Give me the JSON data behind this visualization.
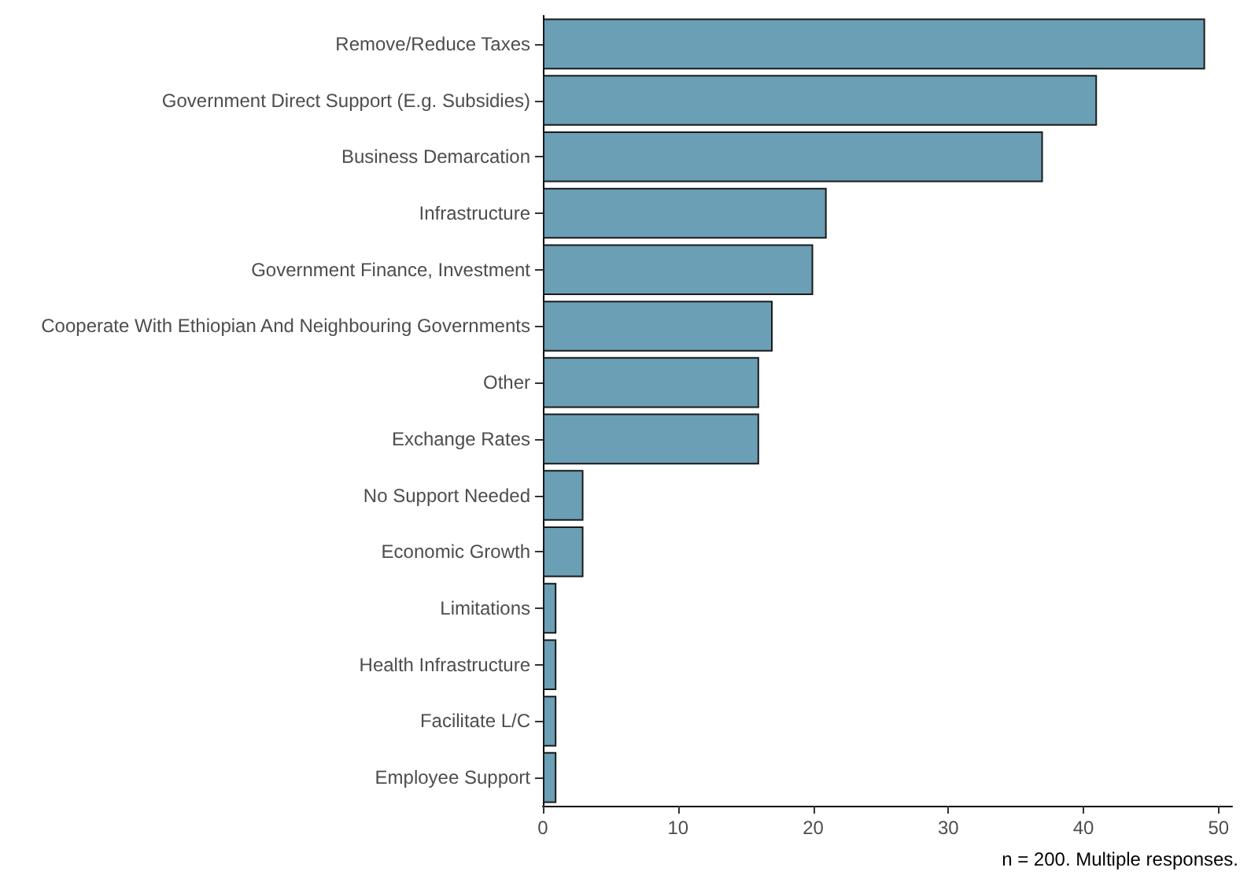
{
  "chart_data": {
    "type": "bar",
    "orientation": "horizontal",
    "categories": [
      "Remove/Reduce Taxes",
      "Government Direct Support (E.g. Subsidies)",
      "Business Demarcation",
      "Infrastructure",
      "Government Finance, Investment",
      "Cooperate With Ethiopian And Neighbouring Governments",
      "Other",
      "Exchange Rates",
      "No Support Needed",
      "Economic Growth",
      "Limitations",
      "Health Infrastructure",
      "Facilitate L/C",
      "Employee Support"
    ],
    "values": [
      49,
      41,
      37,
      21,
      20,
      17,
      16,
      16,
      3,
      3,
      1,
      1,
      1,
      1
    ],
    "color": "#6a9fb5",
    "xlim": [
      0,
      51
    ],
    "xticks": [
      0,
      10,
      20,
      30,
      40,
      50
    ],
    "grid": false,
    "annotations": [
      "n = 200. Multiple responses."
    ]
  }
}
